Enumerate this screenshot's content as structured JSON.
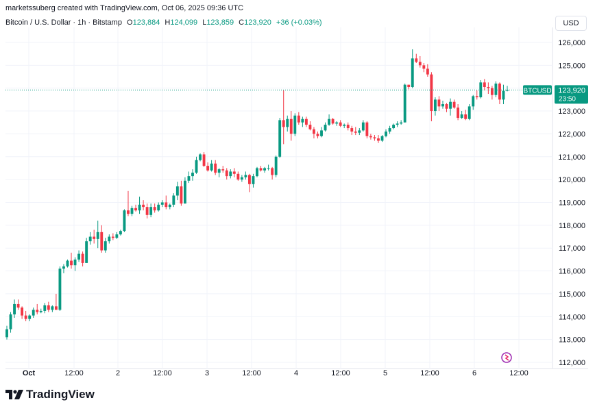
{
  "header": {
    "text": "marketssuberg created with TradingView.com, Oct 06, 2025 09:36 UTC"
  },
  "legend": {
    "symbol": "Bitcoin / U.S. Dollar · 1h · Bitstamp",
    "o_label": "O",
    "o": "123,884",
    "h_label": "H",
    "h": "124,099",
    "l_label": "L",
    "l": "123,859",
    "c_label": "C",
    "c": "123,920",
    "change": "+36 (+0.03%)"
  },
  "currency": "USD",
  "branding": {
    "name": "TradingView"
  },
  "colors": {
    "up": "#089981",
    "down": "#f23645",
    "grid": "#f0f3fa",
    "axis_text": "#131722",
    "price_line": "#089981"
  },
  "chart_data": {
    "type": "candlestick",
    "title": "Bitcoin / U.S. Dollar · 1h · Bitstamp",
    "y_axis": {
      "min": 112000,
      "max": 126000,
      "step": 1000,
      "side": "right"
    },
    "x_ticks": [
      "Oct",
      "12:00",
      "2",
      "12:00",
      "3",
      "12:00",
      "4",
      "12:00",
      "5",
      "12:00",
      "6",
      "12:00"
    ],
    "last_price_label": {
      "symbol": "BTCUSD",
      "price": "123,920",
      "countdown": "23:50",
      "value": 123920
    },
    "candles": [
      [
        113100,
        113600,
        113000,
        113450
      ],
      [
        113450,
        114200,
        113300,
        114100
      ],
      [
        114100,
        114750,
        113950,
        114550
      ],
      [
        114550,
        114750,
        114300,
        114400
      ],
      [
        114400,
        114450,
        113900,
        114050
      ],
      [
        114050,
        114250,
        113800,
        113900
      ],
      [
        113900,
        114100,
        113800,
        114050
      ],
      [
        114050,
        114400,
        113950,
        114300
      ],
      [
        114300,
        114550,
        114100,
        114200
      ],
      [
        114200,
        114350,
        114150,
        114250
      ],
      [
        114250,
        114600,
        114150,
        114500
      ],
      [
        114500,
        114650,
        114200,
        114300
      ],
      [
        114300,
        114500,
        114200,
        114450
      ],
      [
        114450,
        115000,
        114300,
        114300
      ],
      [
        114300,
        116200,
        114250,
        116100
      ],
      [
        116100,
        116300,
        115900,
        116200
      ],
      [
        116200,
        116500,
        116150,
        116450
      ],
      [
        116450,
        116800,
        116100,
        116250
      ],
      [
        116250,
        116600,
        116000,
        116500
      ],
      [
        116500,
        116900,
        116400,
        116750
      ],
      [
        116750,
        116850,
        116200,
        116350
      ],
      [
        116350,
        117450,
        116350,
        117300
      ],
      [
        117300,
        117700,
        117150,
        117500
      ],
      [
        117500,
        117800,
        117200,
        117400
      ],
      [
        117400,
        118200,
        117000,
        117700
      ],
      [
        117700,
        118000,
        116800,
        116900
      ],
      [
        116900,
        117450,
        116800,
        117300
      ],
      [
        117300,
        117600,
        117200,
        117500
      ],
      [
        117500,
        117650,
        117350,
        117450
      ],
      [
        117450,
        117700,
        117400,
        117600
      ],
      [
        117600,
        117800,
        117550,
        117750
      ],
      [
        117750,
        118700,
        117700,
        118650
      ],
      [
        118650,
        119500,
        118400,
        118500
      ],
      [
        118500,
        118850,
        118400,
        118750
      ],
      [
        118750,
        118900,
        118600,
        118650
      ],
      [
        118650,
        119250,
        118500,
        118900
      ],
      [
        118900,
        119100,
        118650,
        118800
      ],
      [
        118800,
        118950,
        118300,
        118450
      ],
      [
        118450,
        118950,
        118350,
        118800
      ],
      [
        118800,
        118950,
        118550,
        118650
      ],
      [
        118650,
        119000,
        118600,
        118900
      ],
      [
        118900,
        119100,
        118800,
        119000
      ],
      [
        119000,
        119300,
        118700,
        118800
      ],
      [
        118800,
        118950,
        118700,
        118900
      ],
      [
        118900,
        119400,
        118800,
        119300
      ],
      [
        119300,
        119900,
        119100,
        119700
      ],
      [
        119700,
        119950,
        118850,
        118950
      ],
      [
        118950,
        120100,
        118950,
        119950
      ],
      [
        119950,
        120350,
        119850,
        120150
      ],
      [
        120150,
        120450,
        119950,
        120300
      ],
      [
        120300,
        121000,
        120250,
        120850
      ],
      [
        120850,
        121150,
        120800,
        121100
      ],
      [
        121100,
        121200,
        120550,
        120600
      ],
      [
        120600,
        120750,
        120350,
        120400
      ],
      [
        120400,
        120850,
        120350,
        120700
      ],
      [
        120700,
        120850,
        120200,
        120300
      ],
      [
        120300,
        120500,
        120100,
        120450
      ],
      [
        120450,
        120600,
        120300,
        120400
      ],
      [
        120400,
        120500,
        120000,
        120150
      ],
      [
        120150,
        120450,
        120050,
        120350
      ],
      [
        120350,
        120500,
        120100,
        120250
      ],
      [
        120250,
        120350,
        119950,
        120000
      ],
      [
        120000,
        120200,
        119900,
        120100
      ],
      [
        120100,
        120350,
        120000,
        120200
      ],
      [
        120200,
        120250,
        119450,
        119800
      ],
      [
        119800,
        120250,
        119650,
        120150
      ],
      [
        120150,
        120550,
        120100,
        120500
      ],
      [
        120500,
        120600,
        120350,
        120400
      ],
      [
        120400,
        120550,
        120300,
        120500
      ],
      [
        120500,
        120650,
        120400,
        120500
      ],
      [
        120500,
        120550,
        120000,
        120200
      ],
      [
        120200,
        121050,
        120100,
        121000
      ],
      [
        121000,
        122700,
        120950,
        122600
      ],
      [
        122600,
        123900,
        121550,
        122300
      ],
      [
        122300,
        122800,
        122100,
        122650
      ],
      [
        122650,
        123000,
        121700,
        122000
      ],
      [
        122000,
        122900,
        121900,
        122800
      ],
      [
        122800,
        122950,
        122400,
        122500
      ],
      [
        122500,
        122750,
        122300,
        122650
      ],
      [
        122650,
        122750,
        122300,
        122400
      ],
      [
        122400,
        122550,
        122150,
        122200
      ],
      [
        122200,
        122300,
        121800,
        122000
      ],
      [
        122000,
        122100,
        121800,
        121900
      ],
      [
        121900,
        122300,
        121850,
        122150
      ],
      [
        122150,
        122500,
        122100,
        122400
      ],
      [
        122400,
        122850,
        122350,
        122650
      ],
      [
        122650,
        122700,
        122400,
        122450
      ],
      [
        122450,
        122550,
        122350,
        122500
      ],
      [
        122500,
        122600,
        122300,
        122350
      ],
      [
        122350,
        122450,
        122250,
        122400
      ],
      [
        122400,
        122500,
        122150,
        122250
      ],
      [
        122250,
        122350,
        121950,
        122100
      ],
      [
        122100,
        122300,
        121950,
        122050
      ],
      [
        122050,
        122250,
        121950,
        122150
      ],
      [
        122150,
        122600,
        122100,
        122500
      ],
      [
        122500,
        122550,
        121800,
        121900
      ],
      [
        121900,
        122000,
        121750,
        121850
      ],
      [
        121850,
        121950,
        121700,
        121800
      ],
      [
        121800,
        121950,
        121600,
        121700
      ],
      [
        121700,
        121950,
        121650,
        121900
      ],
      [
        121900,
        122200,
        121850,
        122100
      ],
      [
        122100,
        122350,
        122000,
        122250
      ],
      [
        122250,
        122450,
        122200,
        122400
      ],
      [
        122400,
        122550,
        122300,
        122450
      ],
      [
        122450,
        122600,
        122400,
        122500
      ],
      [
        122500,
        124200,
        122500,
        124150
      ],
      [
        124150,
        124150,
        123950,
        124050
      ],
      [
        124050,
        125700,
        124000,
        125300
      ],
      [
        125300,
        125500,
        125100,
        125150
      ],
      [
        125150,
        125400,
        124900,
        125000
      ],
      [
        125000,
        125100,
        124700,
        124850
      ],
      [
        124850,
        125050,
        124500,
        124600
      ],
      [
        124600,
        124700,
        122550,
        123000
      ],
      [
        123000,
        123600,
        122800,
        123500
      ],
      [
        123500,
        123650,
        123000,
        123200
      ],
      [
        123200,
        123450,
        123100,
        123300
      ],
      [
        123300,
        123350,
        122950,
        123100
      ],
      [
        123100,
        123550,
        122800,
        123400
      ],
      [
        123400,
        123500,
        123100,
        123150
      ],
      [
        123150,
        123300,
        122600,
        122700
      ],
      [
        122700,
        123000,
        122650,
        122850
      ],
      [
        122850,
        123050,
        122600,
        122650
      ],
      [
        122650,
        123300,
        122600,
        123200
      ],
      [
        123200,
        123700,
        123050,
        123650
      ],
      [
        123650,
        123900,
        123500,
        123600
      ],
      [
        123600,
        124350,
        123550,
        124250
      ],
      [
        124250,
        124400,
        123900,
        124050
      ],
      [
        124050,
        124250,
        123750,
        124000
      ],
      [
        124000,
        124100,
        123500,
        123700
      ],
      [
        123700,
        124300,
        123600,
        124200
      ],
      [
        124200,
        124250,
        123300,
        123500
      ],
      [
        123500,
        124150,
        123300,
        123884
      ],
      [
        123884,
        124099,
        123859,
        123920
      ]
    ]
  }
}
